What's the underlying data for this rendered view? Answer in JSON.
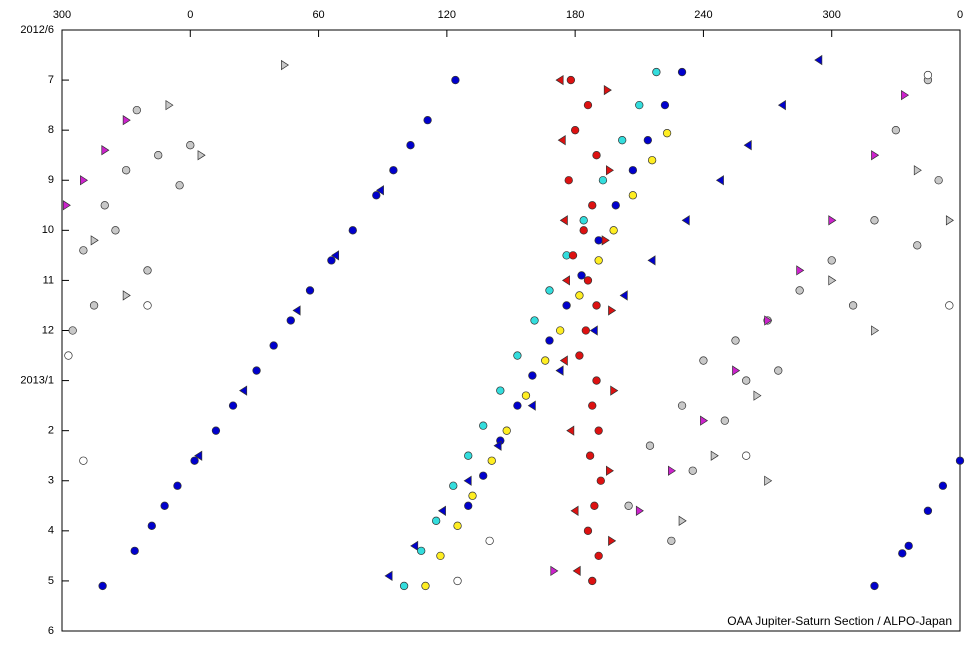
{
  "chart_data": {
    "type": "scatter",
    "xlim": [
      -60,
      360
    ],
    "xticks": [
      {
        "value": -60,
        "label": "300"
      },
      0,
      60,
      120,
      180,
      240,
      300,
      {
        "value": 360,
        "label": "0"
      }
    ],
    "ylim": [
      0,
      12
    ],
    "y_inverted": true,
    "yticks": [
      {
        "value": 0,
        "label": "2012/6"
      },
      {
        "value": 1,
        "label": "7"
      },
      {
        "value": 2,
        "label": "8"
      },
      {
        "value": 3,
        "label": "9"
      },
      {
        "value": 4,
        "label": "10"
      },
      {
        "value": 5,
        "label": "11"
      },
      {
        "value": 6,
        "label": "12"
      },
      {
        "value": 7,
        "label": "2013/1"
      },
      {
        "value": 8,
        "label": "2"
      },
      {
        "value": 9,
        "label": "3"
      },
      {
        "value": 10,
        "label": "4"
      },
      {
        "value": 11,
        "label": "5"
      },
      {
        "value": 12,
        "label": "6"
      }
    ],
    "annotation": "OAA Jupiter-Saturn Section / ALPO-Japan",
    "series": [
      {
        "color": "#0000cc",
        "marker": "circle",
        "x": [
          124,
          111,
          103,
          95,
          87,
          76,
          66,
          56,
          47,
          39,
          31,
          20,
          12,
          2,
          -6,
          -12,
          -18,
          -26,
          -41,
          360,
          352,
          345,
          336,
          333,
          320,
          230,
          222,
          214,
          207,
          199,
          191,
          183,
          176,
          168,
          160,
          153,
          145,
          137,
          130
        ],
        "y": [
          1.0,
          1.8,
          2.3,
          2.8,
          3.3,
          4.0,
          4.6,
          5.2,
          5.8,
          6.3,
          6.8,
          7.5,
          8.0,
          8.6,
          9.1,
          9.5,
          9.9,
          10.4,
          11.1,
          8.6,
          9.1,
          9.6,
          10.3,
          10.45,
          11.1,
          0.84,
          1.5,
          2.2,
          2.8,
          3.5,
          4.2,
          4.9,
          5.5,
          6.2,
          6.9,
          7.5,
          8.2,
          8.9,
          9.5
        ]
      },
      {
        "color": "#0000cc",
        "marker": "tri-left",
        "x": [
          294,
          277,
          261,
          248,
          232,
          216,
          203,
          189,
          173,
          160,
          144,
          130,
          118,
          105,
          93,
          89,
          68,
          50,
          25,
          4
        ],
        "y": [
          0.6,
          1.5,
          2.3,
          3.0,
          3.8,
          4.6,
          5.3,
          6.0,
          6.8,
          7.5,
          8.3,
          9.0,
          9.6,
          10.3,
          10.9,
          3.2,
          4.5,
          5.6,
          7.2,
          8.5
        ]
      },
      {
        "color": "#33dddd",
        "marker": "circle",
        "x": [
          218,
          210,
          202,
          193,
          184,
          176,
          168,
          161,
          153,
          145,
          137,
          130,
          123,
          115,
          108,
          100
        ],
        "y": [
          0.84,
          1.5,
          2.2,
          3.0,
          3.8,
          4.5,
          5.2,
          5.8,
          6.5,
          7.2,
          7.9,
          8.5,
          9.1,
          9.8,
          10.4,
          11.1
        ]
      },
      {
        "color": "#ffee22",
        "marker": "circle",
        "x": [
          223,
          216,
          207,
          198,
          191,
          182,
          173,
          166,
          157,
          148,
          141,
          132,
          125,
          117,
          110
        ],
        "y": [
          2.06,
          2.6,
          3.3,
          4.0,
          4.6,
          5.3,
          6.0,
          6.6,
          7.3,
          8.0,
          8.6,
          9.3,
          9.9,
          10.5,
          11.1
        ]
      },
      {
        "color": "#dd1111",
        "marker": "circle",
        "x": [
          178,
          186,
          180,
          190,
          177,
          188,
          184,
          179,
          186,
          190,
          185,
          182,
          190,
          188,
          191,
          187,
          192,
          189,
          186,
          191,
          188
        ],
        "y": [
          1,
          1.5,
          2,
          2.5,
          3,
          3.5,
          4,
          4.5,
          5,
          5.5,
          6,
          6.5,
          7,
          7.5,
          8,
          8.5,
          9,
          9.5,
          10,
          10.5,
          11
        ]
      },
      {
        "color": "#dd1111",
        "marker": "tri-left",
        "x": [
          173,
          174,
          175,
          176,
          175,
          178,
          180,
          181
        ],
        "y": [
          1,
          2.2,
          3.8,
          5.0,
          6.6,
          8.0,
          9.6,
          10.8
        ]
      },
      {
        "color": "#dd1111",
        "marker": "tri-right",
        "x": [
          195,
          196,
          194,
          197,
          198,
          196,
          197
        ],
        "y": [
          1.2,
          2.8,
          4.2,
          5.6,
          7.2,
          8.8,
          10.2
        ]
      },
      {
        "color": "#c8c8c8",
        "marker": "circle",
        "x": [
          -25,
          -15,
          -5,
          -40,
          -35,
          -50,
          -20,
          -30,
          0,
          -45,
          -55,
          345,
          330,
          350,
          320,
          300,
          285,
          270,
          255,
          240,
          260,
          230,
          275,
          250,
          215,
          235,
          205,
          225,
          340,
          310
        ],
        "y": [
          1.6,
          2.5,
          3.1,
          3.5,
          4.0,
          4.4,
          4.8,
          2.8,
          2.3,
          5.5,
          6.0,
          1.0,
          2.0,
          3.0,
          3.8,
          4.6,
          5.2,
          5.8,
          6.2,
          6.6,
          7.0,
          7.5,
          6.8,
          7.8,
          8.3,
          8.8,
          9.5,
          10.2,
          4.3,
          5.5
        ]
      },
      {
        "color": "#c8c8c8",
        "marker": "tri-right",
        "x": [
          -10,
          5,
          -45,
          -30,
          340,
          355,
          300,
          265,
          245,
          230,
          320,
          270,
          44
        ],
        "y": [
          1.5,
          2.5,
          4.2,
          5.3,
          2.8,
          3.8,
          5.0,
          7.3,
          8.5,
          9.8,
          6.0,
          9.0,
          0.7
        ]
      },
      {
        "color": "#ffffff",
        "marker": "circle",
        "x": [
          -57,
          -50,
          -20,
          355,
          345,
          125,
          140,
          260
        ],
        "y": [
          6.5,
          8.6,
          5.5,
          5.5,
          0.9,
          11.0,
          10.2,
          8.5
        ]
      },
      {
        "color": "#cc22cc",
        "marker": "tri-right",
        "x": [
          -30,
          -40,
          -50,
          -58,
          334,
          320,
          300,
          285,
          270,
          255,
          240,
          225,
          210,
          170
        ],
        "y": [
          1.8,
          2.4,
          3.0,
          3.5,
          1.3,
          2.5,
          3.8,
          4.8,
          5.8,
          6.8,
          7.8,
          8.8,
          9.6,
          10.8
        ]
      }
    ]
  }
}
